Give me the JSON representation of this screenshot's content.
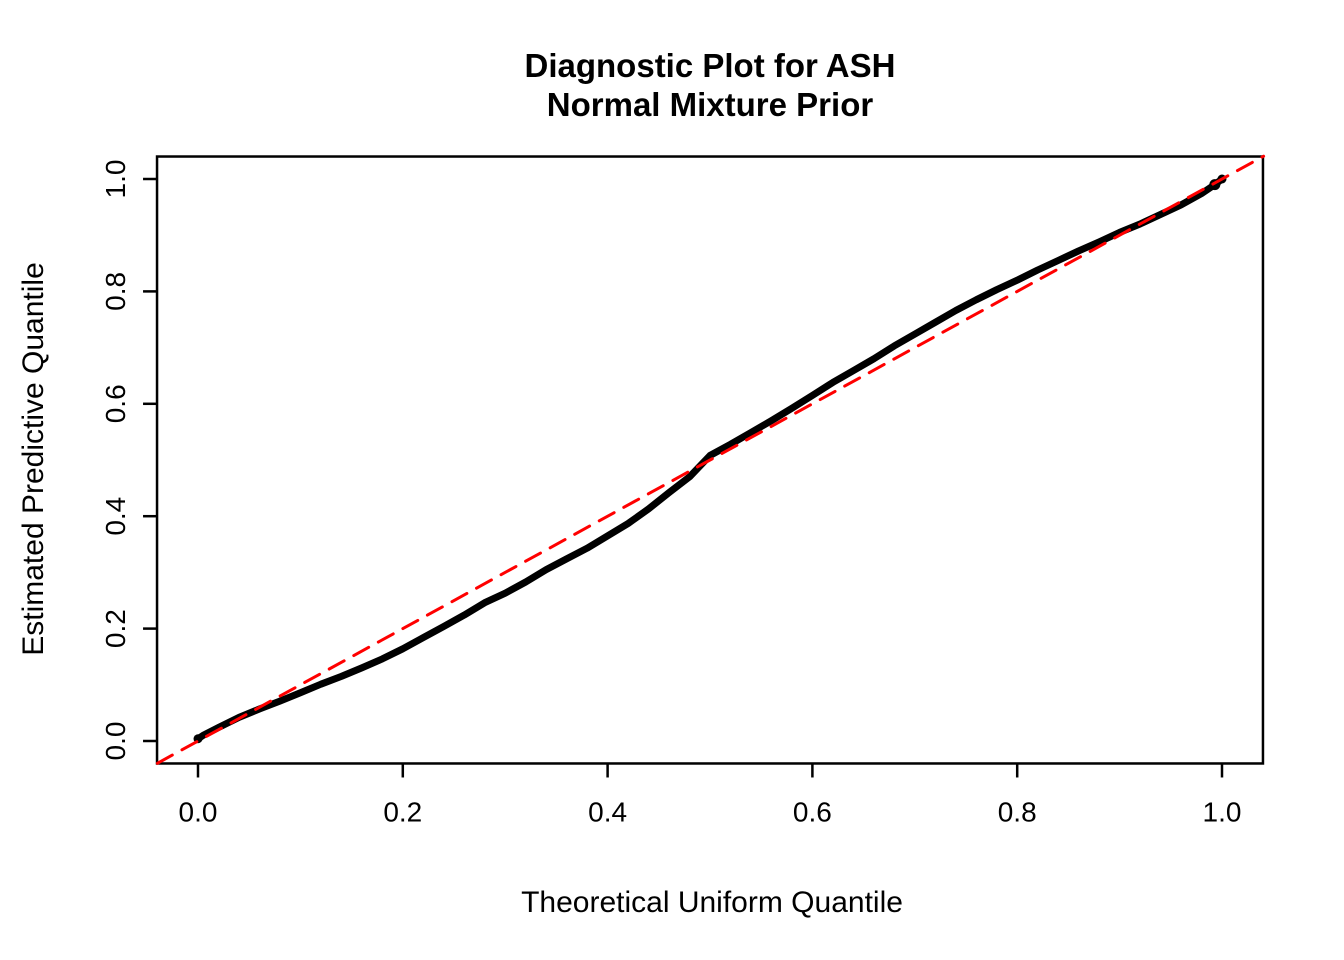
{
  "title": {
    "line1": "Diagnostic Plot for ASH",
    "line2": "Normal Mixture Prior"
  },
  "colors": {
    "observed_curve": "#000000",
    "reference_line": "#FF0000",
    "axis": "#000000",
    "background": "#FFFFFF"
  },
  "chart_data": {
    "type": "line",
    "title": "Diagnostic Plot for ASH",
    "subtitle": "Normal Mixture Prior",
    "xlabel": "Theoretical Uniform Quantile",
    "ylabel": "Estimated Predictive Quantile",
    "xlim": [
      -0.04,
      1.04
    ],
    "ylim": [
      -0.04,
      1.04
    ],
    "grid": false,
    "legend": "none",
    "x_ticks": [
      0.0,
      0.2,
      0.4,
      0.6,
      0.8,
      1.0
    ],
    "y_ticks": [
      0.0,
      0.2,
      0.4,
      0.6,
      0.8,
      1.0
    ],
    "x_tick_labels": [
      "0.0",
      "0.2",
      "0.4",
      "0.6",
      "0.8",
      "1.0"
    ],
    "y_tick_labels": [
      "0.0",
      "0.2",
      "0.4",
      "0.6",
      "0.8",
      "1.0"
    ],
    "series": [
      {
        "name": "estimated-predictive-quantile-curve",
        "type": "line",
        "color": "#000000",
        "stroke_width": 7,
        "dashed": false,
        "points": [
          [
            0.0,
            0.004
          ],
          [
            0.005,
            0.01
          ],
          [
            0.02,
            0.024
          ],
          [
            0.04,
            0.042
          ],
          [
            0.06,
            0.057
          ],
          [
            0.08,
            0.071
          ],
          [
            0.1,
            0.086
          ],
          [
            0.12,
            0.101
          ],
          [
            0.14,
            0.115
          ],
          [
            0.16,
            0.13
          ],
          [
            0.18,
            0.146
          ],
          [
            0.2,
            0.164
          ],
          [
            0.22,
            0.184
          ],
          [
            0.24,
            0.204
          ],
          [
            0.26,
            0.224
          ],
          [
            0.28,
            0.246
          ],
          [
            0.3,
            0.263
          ],
          [
            0.32,
            0.283
          ],
          [
            0.34,
            0.305
          ],
          [
            0.36,
            0.324
          ],
          [
            0.38,
            0.343
          ],
          [
            0.4,
            0.365
          ],
          [
            0.42,
            0.387
          ],
          [
            0.44,
            0.413
          ],
          [
            0.46,
            0.442
          ],
          [
            0.48,
            0.47
          ],
          [
            0.5,
            0.508
          ],
          [
            0.52,
            0.528
          ],
          [
            0.54,
            0.549
          ],
          [
            0.56,
            0.57
          ],
          [
            0.58,
            0.592
          ],
          [
            0.6,
            0.615
          ],
          [
            0.62,
            0.638
          ],
          [
            0.64,
            0.659
          ],
          [
            0.66,
            0.68
          ],
          [
            0.68,
            0.703
          ],
          [
            0.7,
            0.724
          ],
          [
            0.72,
            0.745
          ],
          [
            0.74,
            0.766
          ],
          [
            0.76,
            0.785
          ],
          [
            0.78,
            0.803
          ],
          [
            0.8,
            0.82
          ],
          [
            0.82,
            0.838
          ],
          [
            0.84,
            0.855
          ],
          [
            0.86,
            0.872
          ],
          [
            0.88,
            0.888
          ],
          [
            0.9,
            0.905
          ],
          [
            0.92,
            0.92
          ],
          [
            0.94,
            0.937
          ],
          [
            0.96,
            0.954
          ],
          [
            0.98,
            0.974
          ],
          [
            0.993,
            0.99
          ],
          [
            1.0,
            1.0
          ]
        ]
      },
      {
        "name": "identity-reference-line",
        "type": "line",
        "color": "#FF0000",
        "stroke_width": 3,
        "dashed": true,
        "points": [
          [
            -0.0396,
            -0.0396
          ],
          [
            1.0406,
            1.0406
          ]
        ]
      }
    ]
  }
}
